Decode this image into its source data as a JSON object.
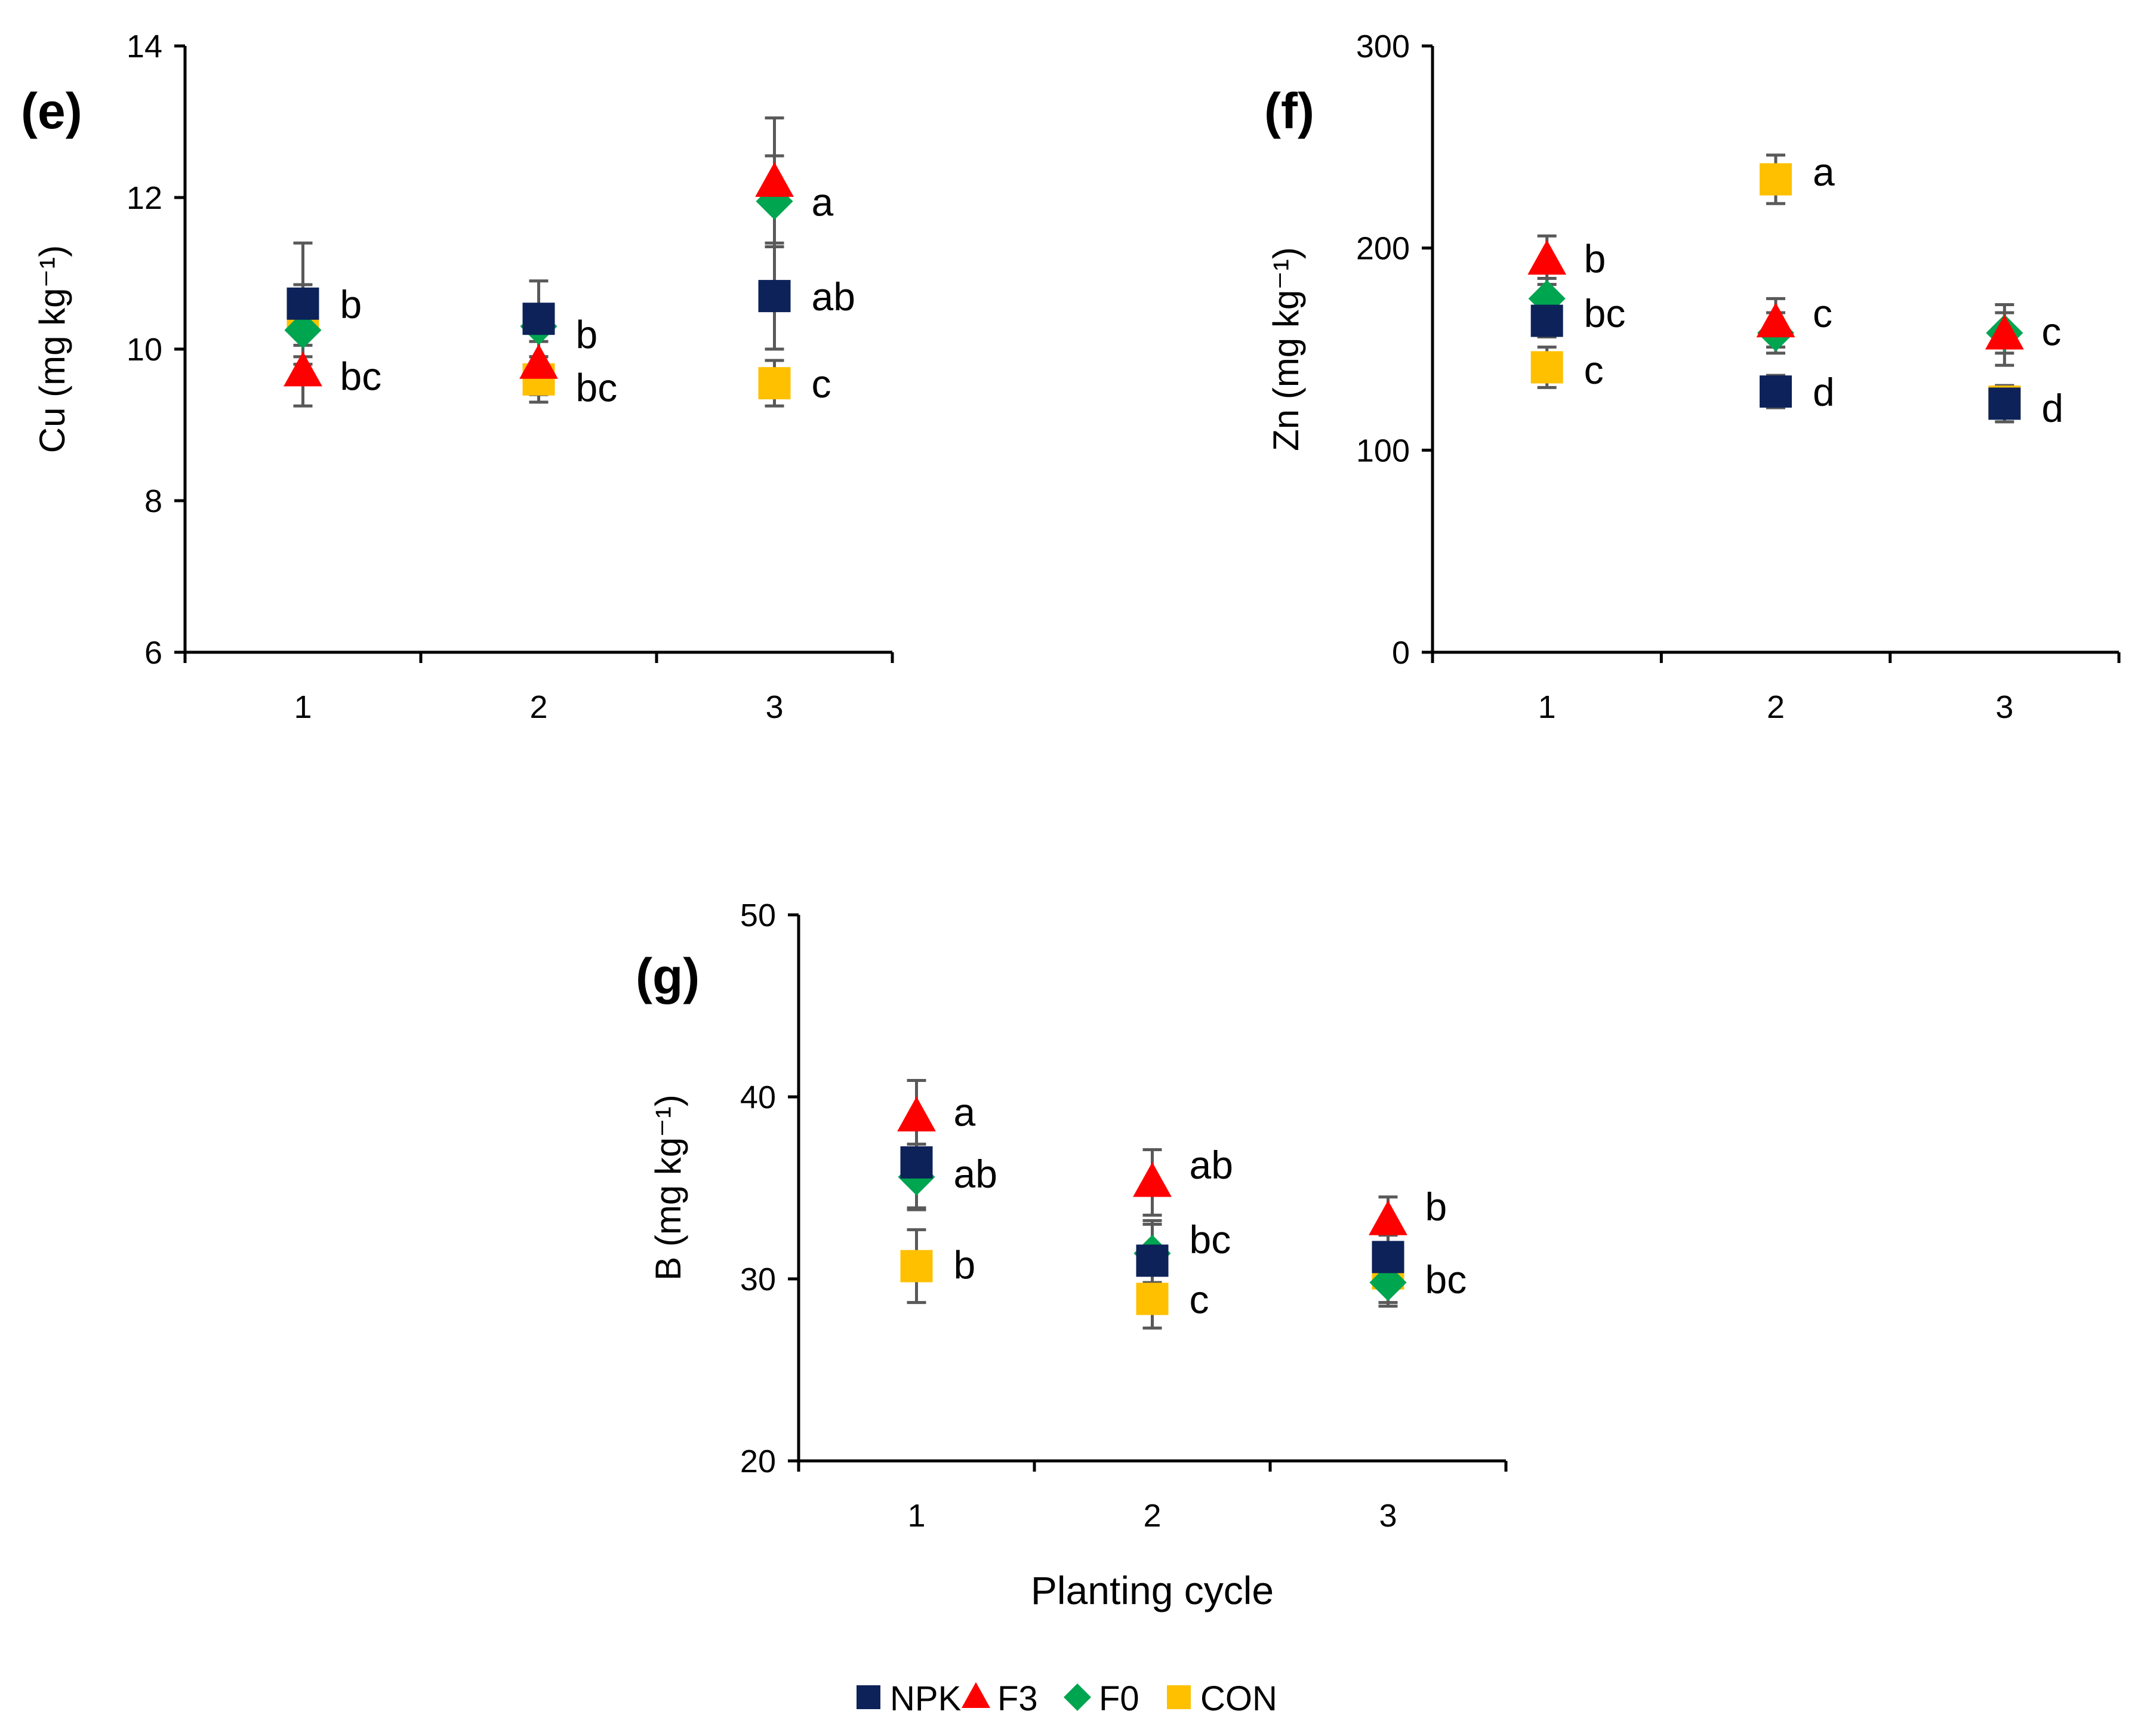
{
  "colors": {
    "NPK": "#0d2259",
    "F3": "#ff0000",
    "F0": "#00a550",
    "CON": "#ffc000",
    "errorbar": "#595959",
    "axis": "#000000"
  },
  "legend": {
    "placement": "bottom-center",
    "items": [
      {
        "name": "NPK",
        "marker": "square"
      },
      {
        "name": "F3",
        "marker": "triangle"
      },
      {
        "name": "F0",
        "marker": "diamond"
      },
      {
        "name": "CON",
        "marker": "square"
      }
    ]
  },
  "chart_data": [
    {
      "type": "scatter",
      "panel_label": "(e)",
      "xlabel": "",
      "ylabel": "Cu (mg kg⁻¹)",
      "categories": [
        "1",
        "2",
        "3"
      ],
      "ylim": [
        6,
        14
      ],
      "yticks": [
        6,
        8,
        10,
        12,
        14
      ],
      "grid": false,
      "series": [
        {
          "name": "NPK",
          "values": [
            10.6,
            10.4,
            10.7
          ],
          "errors": [
            0.8,
            0.5,
            0.7
          ]
        },
        {
          "name": "F3",
          "values": [
            9.7,
            9.8,
            12.2
          ],
          "errors": [
            0.45,
            0.4,
            0.85
          ]
        },
        {
          "name": "F0",
          "values": [
            10.25,
            10.3,
            11.95
          ],
          "errors": [
            0.35,
            0.2,
            0.6
          ]
        },
        {
          "name": "CON",
          "values": [
            10.45,
            9.6,
            9.55
          ],
          "errors": [
            0.4,
            0.3,
            0.3
          ]
        }
      ],
      "annotations": [
        {
          "x": "1",
          "y": 10.6,
          "text": "b"
        },
        {
          "x": "1",
          "y": 9.65,
          "text": "bc"
        },
        {
          "x": "2",
          "y": 10.2,
          "text": "b"
        },
        {
          "x": "2",
          "y": 9.5,
          "text": "bc"
        },
        {
          "x": "3",
          "y": 11.95,
          "text": "a"
        },
        {
          "x": "3",
          "y": 10.7,
          "text": "ab"
        },
        {
          "x": "3",
          "y": 9.55,
          "text": "c"
        }
      ]
    },
    {
      "type": "scatter",
      "panel_label": "(f)",
      "xlabel": "",
      "ylabel": "Zn (mg kg⁻¹)",
      "categories": [
        "1",
        "2",
        "3"
      ],
      "ylim": [
        0,
        300
      ],
      "yticks": [
        0,
        100,
        200,
        300
      ],
      "grid": false,
      "series": [
        {
          "name": "NPK",
          "values": [
            164,
            129,
            123
          ],
          "errors": [
            8,
            8,
            9
          ]
        },
        {
          "name": "F3",
          "values": [
            194,
            163,
            157
          ],
          "errors": [
            12,
            12,
            15
          ]
        },
        {
          "name": "F0",
          "values": [
            175,
            158,
            158
          ],
          "errors": [
            10,
            10,
            10
          ]
        },
        {
          "name": "CON",
          "values": [
            141,
            234,
            124
          ],
          "errors": [
            10,
            12,
            8
          ]
        }
      ],
      "annotations": [
        {
          "x": "1",
          "y": 195,
          "text": "b"
        },
        {
          "x": "1",
          "y": 168,
          "text": "bc"
        },
        {
          "x": "1",
          "y": 140,
          "text": "c"
        },
        {
          "x": "2",
          "y": 238,
          "text": "a"
        },
        {
          "x": "2",
          "y": 168,
          "text": "c"
        },
        {
          "x": "2",
          "y": 129,
          "text": "d"
        },
        {
          "x": "3",
          "y": 159,
          "text": "c"
        },
        {
          "x": "3",
          "y": 121,
          "text": "d"
        }
      ]
    },
    {
      "type": "scatter",
      "panel_label": "(g)",
      "xlabel": "Planting cycle",
      "ylabel": "B (mg kg⁻¹)",
      "categories": [
        "1",
        "2",
        "3"
      ],
      "ylim": [
        20,
        50
      ],
      "yticks": [
        20,
        30,
        40,
        50
      ],
      "grid": false,
      "series": [
        {
          "name": "NPK",
          "values": [
            36.4,
            31.0,
            31.2
          ],
          "errors": [
            2.5,
            2.2,
            1.2
          ]
        },
        {
          "name": "F3",
          "values": [
            38.9,
            35.3,
            33.2
          ],
          "errors": [
            2.0,
            1.8,
            1.3
          ]
        },
        {
          "name": "F0",
          "values": [
            35.6,
            31.4,
            29.8
          ],
          "errors": [
            1.8,
            1.6,
            1.3
          ]
        },
        {
          "name": "CON",
          "values": [
            30.7,
            28.9,
            30.3
          ],
          "errors": [
            2.0,
            1.6,
            1.6
          ]
        }
      ],
      "annotations": [
        {
          "x": "1",
          "y": 39.2,
          "text": "a"
        },
        {
          "x": "1",
          "y": 35.8,
          "text": "ab"
        },
        {
          "x": "1",
          "y": 30.8,
          "text": "b"
        },
        {
          "x": "2",
          "y": 36.3,
          "text": "ab"
        },
        {
          "x": "2",
          "y": 32.2,
          "text": "bc"
        },
        {
          "x": "2",
          "y": 28.9,
          "text": "c"
        },
        {
          "x": "3",
          "y": 34.0,
          "text": "b"
        },
        {
          "x": "3",
          "y": 30.0,
          "text": "bc"
        }
      ]
    }
  ]
}
